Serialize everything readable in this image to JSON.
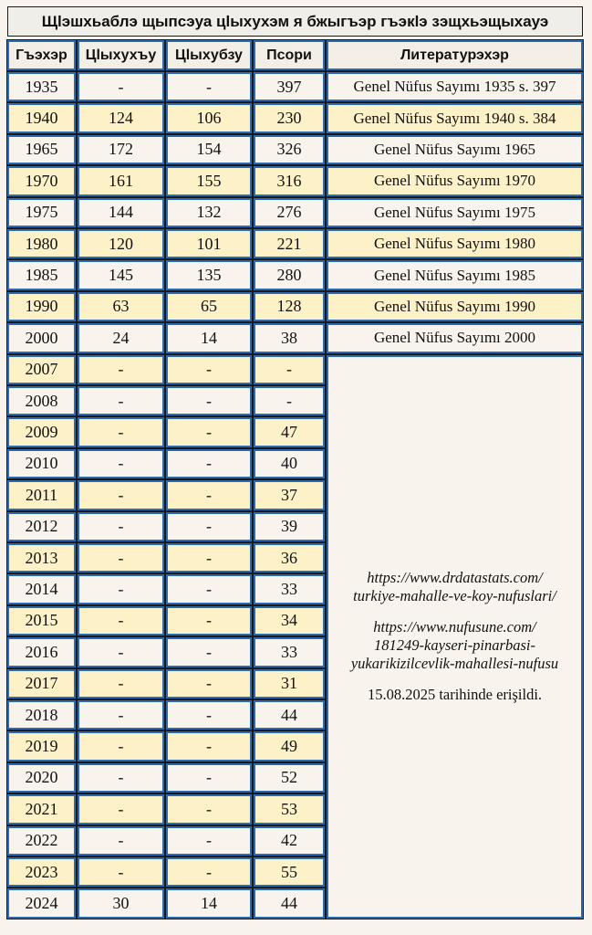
{
  "title": "Щӏэшхьаблэ щыпсэуа цӏыхухэм я бжыгъэр гъэкӏэ зэщхьэщыхауэ",
  "headers": [
    "Гъэхэр",
    "Цӏыхухъу",
    "Цӏыхубзу",
    "Псори",
    "Литературэхэр"
  ],
  "rows": [
    {
      "year": "1935",
      "male": "-",
      "female": "-",
      "total": "397",
      "source": "Genel Nüfus Sayımı 1935 s. 397"
    },
    {
      "year": "1940",
      "male": "124",
      "female": "106",
      "total": "230",
      "source": "Genel Nüfus Sayımı 1940 s. 384"
    },
    {
      "year": "1965",
      "male": "172",
      "female": "154",
      "total": "326",
      "source": "Genel Nüfus Sayımı 1965"
    },
    {
      "year": "1970",
      "male": "161",
      "female": "155",
      "total": "316",
      "source": "Genel Nüfus Sayımı 1970"
    },
    {
      "year": "1975",
      "male": "144",
      "female": "132",
      "total": "276",
      "source": "Genel Nüfus Sayımı 1975"
    },
    {
      "year": "1980",
      "male": "120",
      "female": "101",
      "total": "221",
      "source": "Genel Nüfus Sayımı 1980"
    },
    {
      "year": "1985",
      "male": "145",
      "female": "135",
      "total": "280",
      "source": "Genel Nüfus Sayımı 1985"
    },
    {
      "year": "1990",
      "male": "63",
      "female": "65",
      "total": "128",
      "source": "Genel Nüfus Sayımı 1990"
    },
    {
      "year": "2000",
      "male": "24",
      "female": "14",
      "total": "38",
      "source": "Genel Nüfus Sayımı 2000"
    },
    {
      "year": "2007",
      "male": "-",
      "female": "-",
      "total": "-"
    },
    {
      "year": "2008",
      "male": "-",
      "female": "-",
      "total": "-"
    },
    {
      "year": "2009",
      "male": "-",
      "female": "-",
      "total": "47"
    },
    {
      "year": "2010",
      "male": "-",
      "female": "-",
      "total": "40"
    },
    {
      "year": "2011",
      "male": "-",
      "female": "-",
      "total": "37"
    },
    {
      "year": "2012",
      "male": "-",
      "female": "-",
      "total": "39"
    },
    {
      "year": "2013",
      "male": "-",
      "female": "-",
      "total": "36"
    },
    {
      "year": "2014",
      "male": "-",
      "female": "-",
      "total": "33"
    },
    {
      "year": "2015",
      "male": "-",
      "female": "-",
      "total": "34"
    },
    {
      "year": "2016",
      "male": "-",
      "female": "-",
      "total": "33"
    },
    {
      "year": "2017",
      "male": "-",
      "female": "-",
      "total": "31"
    },
    {
      "year": "2018",
      "male": "-",
      "female": "-",
      "total": "44"
    },
    {
      "year": "2019",
      "male": "-",
      "female": "-",
      "total": "49"
    },
    {
      "year": "2020",
      "male": "-",
      "female": "-",
      "total": "52"
    },
    {
      "year": "2021",
      "male": "-",
      "female": "-",
      "total": "53"
    },
    {
      "year": "2022",
      "male": "-",
      "female": "-",
      "total": "42"
    },
    {
      "year": "2023",
      "male": "-",
      "female": "-",
      "total": "55"
    },
    {
      "year": "2024",
      "male": "30",
      "female": "14",
      "total": "44"
    }
  ],
  "merged_source": {
    "link1_line1": "https://www.drdatastats.com/",
    "link1_line2": "turkiye-mahalle-ve-koy-nufuslari/",
    "link2_line1": "https://www.nufusune.com/",
    "link2_line2": "181249-kayseri-pinarbasi-",
    "link2_line3": "yukarikizilcevlik-mahallesi-nufusu",
    "accessed": "15.08.2025 tarihinde erişildi."
  },
  "colors": {
    "border_blue": "#2b6bb3",
    "row_yellow": "#fdf1c7",
    "row_white": "#f8f3ec"
  }
}
